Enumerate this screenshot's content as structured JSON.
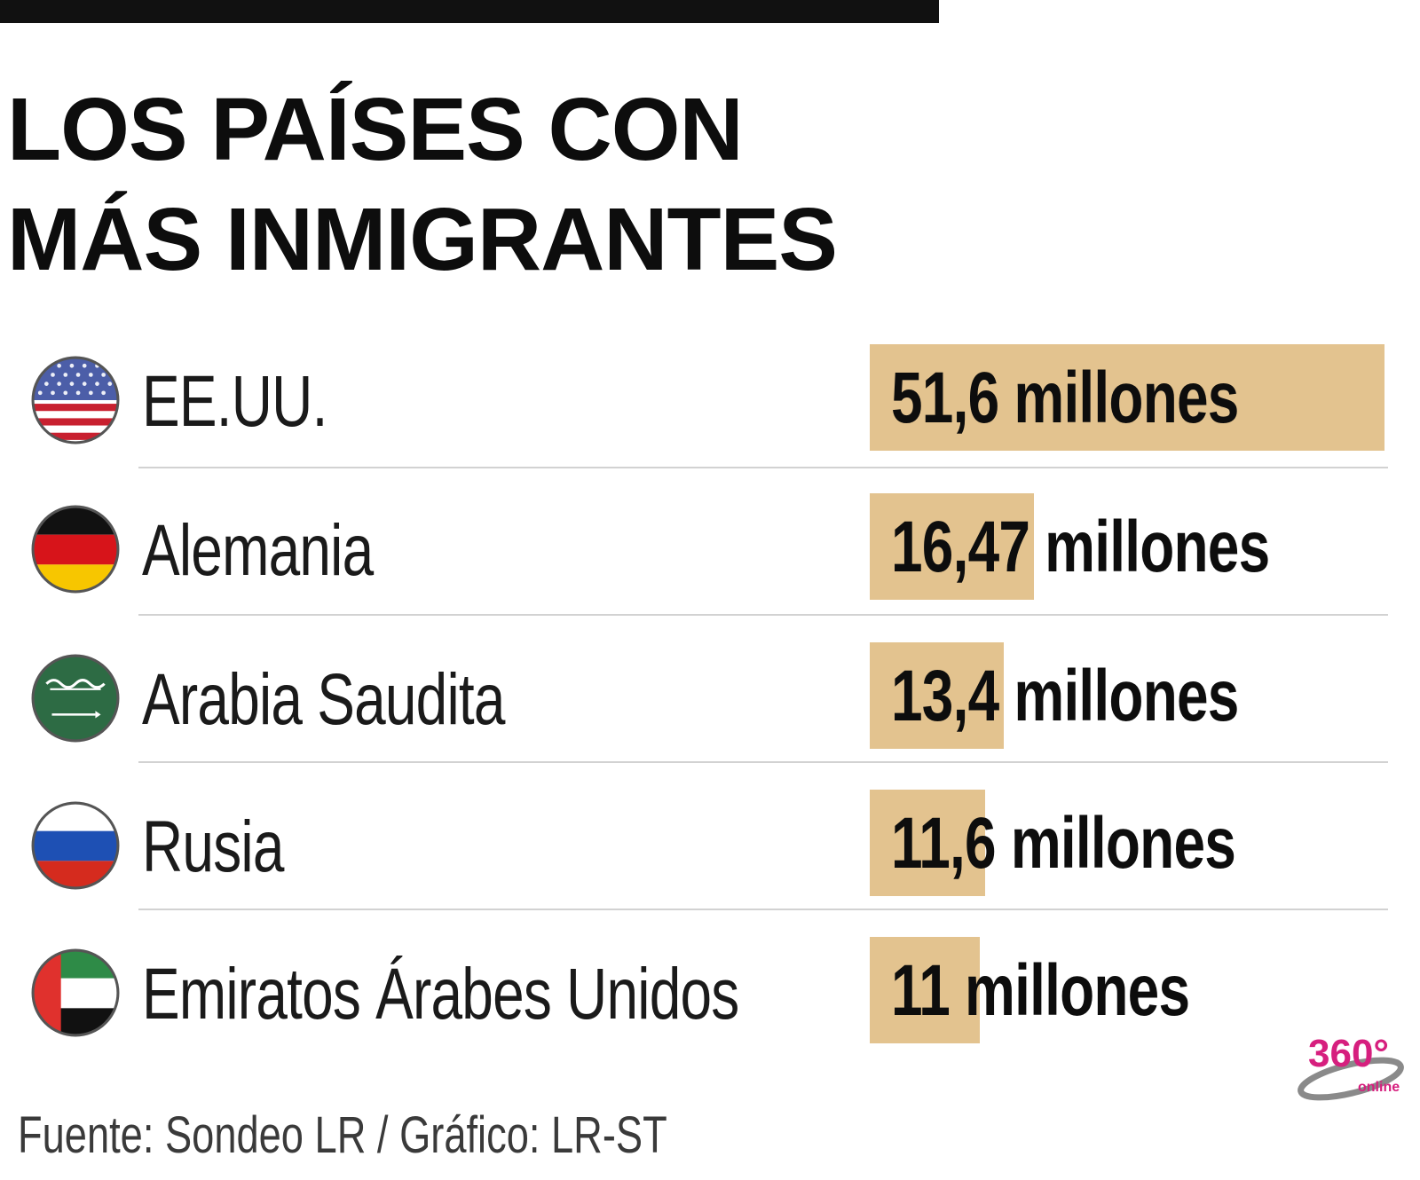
{
  "header": {
    "title_line1": "LOS PAÍSES CON",
    "title_line2": "MÁS INMIGRANTES"
  },
  "chart_data": {
    "type": "bar",
    "title": "LOS PAÍSES CON MÁS INMIGRANTES",
    "categories": [
      "EE.UU.",
      "Alemania",
      "Arabia Saudita",
      "Rusia",
      "Emiratos Árabes Unidos"
    ],
    "values": [
      51.6,
      16.47,
      13.4,
      11.6,
      11
    ],
    "value_labels": [
      "51,6 millones",
      "16,47 millones",
      "13,4 millones",
      "11,6 millones",
      "11 millones"
    ],
    "unit": "millones",
    "xlim": [
      0,
      51.6
    ],
    "bar_color": "#e3c38f",
    "flags": [
      "usa-flag-icon",
      "germany-flag-icon",
      "saudi-arabia-flag-icon",
      "russia-flag-icon",
      "uae-flag-icon"
    ]
  },
  "footer": {
    "source": "Fuente: Sondeo LR / Gráfico: LR-ST",
    "logo_text": "360°",
    "logo_subtext": "online"
  }
}
